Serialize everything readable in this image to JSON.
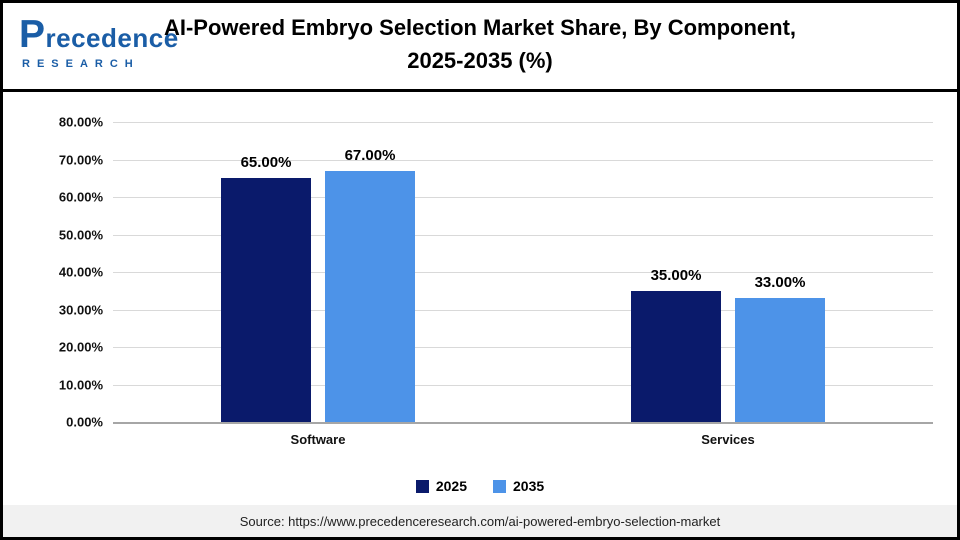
{
  "header": {
    "logo": {
      "name": "Precedence",
      "sub": "RESEARCH"
    },
    "title_line1": "AI-Powered Embryo Selection Market Share, By Component,",
    "title_line2": "2025-2035 (%)"
  },
  "chart_data": {
    "type": "bar",
    "title": "AI-Powered Embryo Selection Market Share, By Component, 2025-2035 (%)",
    "categories": [
      "Software",
      "Services"
    ],
    "series": [
      {
        "name": "2025",
        "color": "#0A1A6B",
        "values": [
          65.0,
          35.0
        ]
      },
      {
        "name": "2035",
        "color": "#4D93E8",
        "values": [
          67.0,
          33.0
        ]
      }
    ],
    "value_labels": [
      [
        "65.00%",
        "35.00%"
      ],
      [
        "67.00%",
        "33.00%"
      ]
    ],
    "ylim": [
      0,
      80
    ],
    "ytick_step": 10,
    "ytick_format": "0.00%",
    "grid": true,
    "legend_position": "bottom",
    "xlabel": "",
    "ylabel": ""
  },
  "source": "Source: https://www.precedenceresearch.com/ai-powered-embryo-selection-market",
  "colors": {
    "series_2025": "#0A1A6B",
    "series_2035": "#4D93E8",
    "logo_blue": "#1A5DA6",
    "gridline": "#D9D9D9",
    "axis_line": "#A6A6A6",
    "source_strip": "#F1F1F1"
  }
}
